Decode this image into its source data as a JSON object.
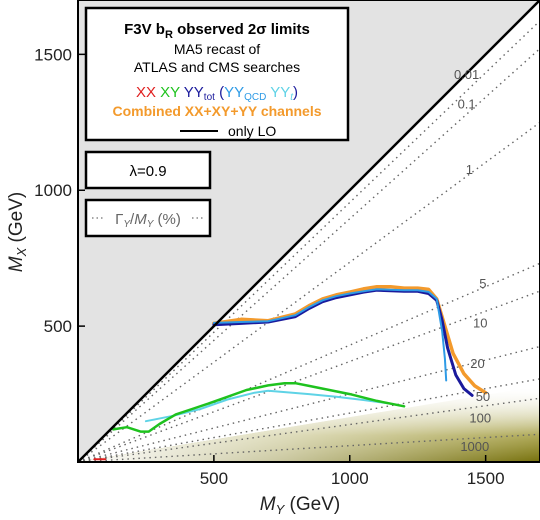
{
  "chart_data": {
    "type": "line",
    "xlabel": "M_Y (GeV)",
    "ylabel": "M_X (GeV)",
    "xlim": [
      0,
      1700
    ],
    "ylim": [
      0,
      1700
    ],
    "xticks": [
      500,
      1000,
      1500
    ],
    "yticks": [
      500,
      1000,
      1500
    ],
    "legend": {
      "title_main": "F3V b",
      "title_sub": "R",
      "title_rest": " observed 2σ limits",
      "line2": "MA5 recast of",
      "line3": "ATLAS and CMS searches",
      "xx": "XX",
      "xy": "XY",
      "yy_main": "YY",
      "yy_sub": "tot",
      "paren_open": "(",
      "yyqcd_main": "YY",
      "yyqcd_sub": "QCD",
      "yyt_main": "YY",
      "yyt_sub": "t",
      "paren_close": ")",
      "combined": "Combined XX+XY+YY channels",
      "lo_label": "only LO"
    },
    "lambda_label": "λ=0.9",
    "width_label": "Γ_Y/M_Y (%)",
    "width_contours": [
      {
        "label": "0.01",
        "slope": 0.955,
        "lx": 1430,
        "ly": 1410
      },
      {
        "label": "0.1",
        "slope": 0.895,
        "lx": 1430,
        "ly": 1300
      },
      {
        "label": "1",
        "slope": 0.735,
        "lx": 1440,
        "ly": 1060
      },
      {
        "label": "5",
        "slope": 0.43,
        "lx": 1490,
        "ly": 640
      },
      {
        "label": "10",
        "slope": 0.37,
        "lx": 1480,
        "ly": 495
      },
      {
        "label": "20",
        "slope": 0.25,
        "lx": 1470,
        "ly": 345
      },
      {
        "label": "50",
        "slope": 0.18,
        "lx": 1490,
        "ly": 225
      },
      {
        "label": "100",
        "slope": 0.138,
        "lx": 1480,
        "ly": 145
      },
      {
        "label": "1000",
        "slope": 0.06,
        "lx": 1460,
        "ly": 40
      }
    ],
    "series": [
      {
        "name": "Combined XX+XY+YY channels",
        "color": "#f39a2c",
        "width": 3.5,
        "x": [
          500,
          600,
          700,
          800,
          850,
          900,
          950,
          1000,
          1050,
          1100,
          1150,
          1200,
          1250,
          1290,
          1320,
          1350,
          1380,
          1420,
          1460,
          1500
        ],
        "y": [
          510,
          525,
          520,
          545,
          575,
          600,
          615,
          625,
          637,
          645,
          645,
          640,
          640,
          635,
          600,
          500,
          400,
          325,
          280,
          255
        ]
      },
      {
        "name": "YY_tot",
        "color": "#1a1a9c",
        "width": 3,
        "x": [
          500,
          600,
          700,
          800,
          850,
          900,
          950,
          1000,
          1050,
          1100,
          1150,
          1200,
          1250,
          1290,
          1320,
          1340,
          1360,
          1390,
          1420,
          1450
        ],
        "y": [
          505,
          510,
          515,
          535,
          565,
          590,
          605,
          615,
          625,
          632,
          630,
          628,
          628,
          620,
          595,
          520,
          420,
          320,
          270,
          245
        ]
      },
      {
        "name": "YY_QCD",
        "color": "#2e9be6",
        "width": 2,
        "x": [
          500,
          600,
          700,
          800,
          850,
          900,
          950,
          1000,
          1050,
          1100,
          1150,
          1200,
          1250,
          1290,
          1320,
          1340,
          1350,
          1355
        ],
        "y": [
          512,
          515,
          518,
          540,
          570,
          595,
          610,
          620,
          628,
          636,
          634,
          632,
          632,
          626,
          600,
          480,
          380,
          300
        ]
      },
      {
        "name": "YY_t",
        "color": "#5fd3e6",
        "width": 2,
        "x": [
          250,
          350,
          450,
          550,
          650,
          700,
          750,
          850,
          950,
          1050,
          1150
        ],
        "y": [
          150,
          170,
          195,
          230,
          255,
          262,
          258,
          250,
          240,
          228,
          215
        ]
      },
      {
        "name": "XY",
        "color": "#1ec21e",
        "width": 2.5,
        "x": [
          130,
          180,
          230,
          260,
          300,
          360,
          420,
          480,
          550,
          620,
          700,
          760,
          800,
          850,
          900,
          1000,
          1100,
          1200
        ],
        "y": [
          120,
          128,
          112,
          112,
          140,
          175,
          195,
          215,
          240,
          265,
          282,
          290,
          290,
          280,
          270,
          250,
          225,
          205
        ]
      },
      {
        "name": "XX",
        "color": "#e02020",
        "width": 2,
        "x": [
          60,
          80,
          100
        ],
        "y": [
          10,
          10,
          10
        ]
      }
    ]
  },
  "colors": {
    "xx": "#e02020",
    "xy": "#1ec21e",
    "yy": "#1a1a9c",
    "yyqcd": "#2e9be6",
    "yyt": "#5fd3e6",
    "combined": "#f39a2c",
    "excluded_region": "#e3e3e3",
    "band": "#7a7a14"
  }
}
